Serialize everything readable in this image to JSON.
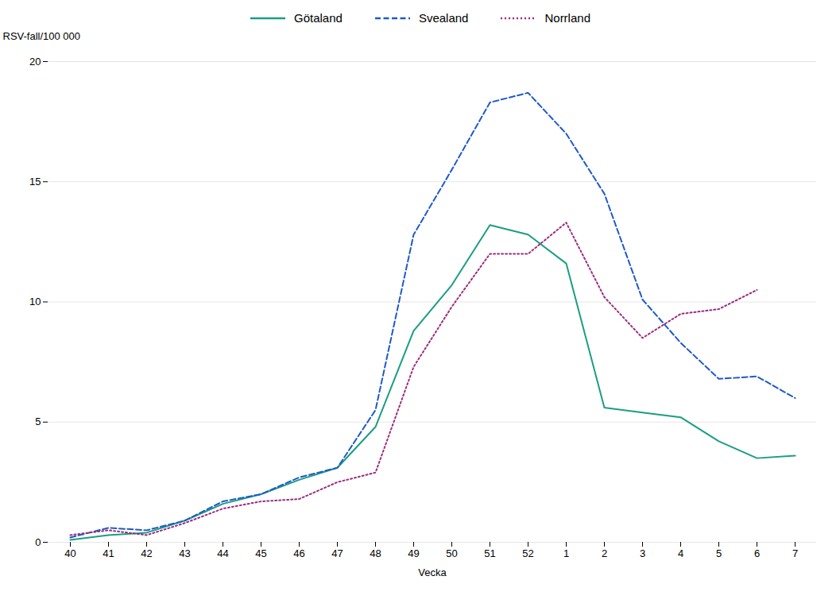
{
  "chart_data": {
    "type": "line",
    "categories": [
      "40",
      "41",
      "42",
      "43",
      "44",
      "45",
      "46",
      "47",
      "48",
      "49",
      "50",
      "51",
      "52",
      "1",
      "2",
      "3",
      "4",
      "5",
      "6",
      "7"
    ],
    "series": [
      {
        "name": "Götaland",
        "color": "#1a9e82",
        "line_style": "solid",
        "values": [
          0.1,
          0.3,
          0.4,
          0.9,
          1.6,
          2.0,
          2.6,
          3.1,
          4.8,
          8.8,
          10.7,
          13.2,
          12.8,
          11.6,
          5.6,
          5.4,
          5.2,
          4.2,
          3.5,
          3.6
        ]
      },
      {
        "name": "Svealand",
        "color": "#1f5ac8",
        "line_style": "dashed",
        "values": [
          0.2,
          0.6,
          0.5,
          0.9,
          1.7,
          2.0,
          2.7,
          3.1,
          5.5,
          12.8,
          15.5,
          18.3,
          18.7,
          17.0,
          14.5,
          10.1,
          8.3,
          6.8,
          6.9,
          6.0
        ]
      },
      {
        "name": "Norrland",
        "color": "#9b2d80",
        "line_style": "dotted",
        "values": [
          0.3,
          0.5,
          0.3,
          0.8,
          1.4,
          1.7,
          1.8,
          2.5,
          2.9,
          7.3,
          9.8,
          12.0,
          12.0,
          13.3,
          10.2,
          8.5,
          9.5,
          9.7,
          10.5,
          null
        ]
      }
    ],
    "xlabel": "Vecka",
    "ylabel": "RSV-fall/100 000",
    "ylim": [
      0,
      20
    ],
    "yticks": [
      0,
      5,
      10,
      15,
      20
    ],
    "grid": true,
    "legend": "top"
  }
}
